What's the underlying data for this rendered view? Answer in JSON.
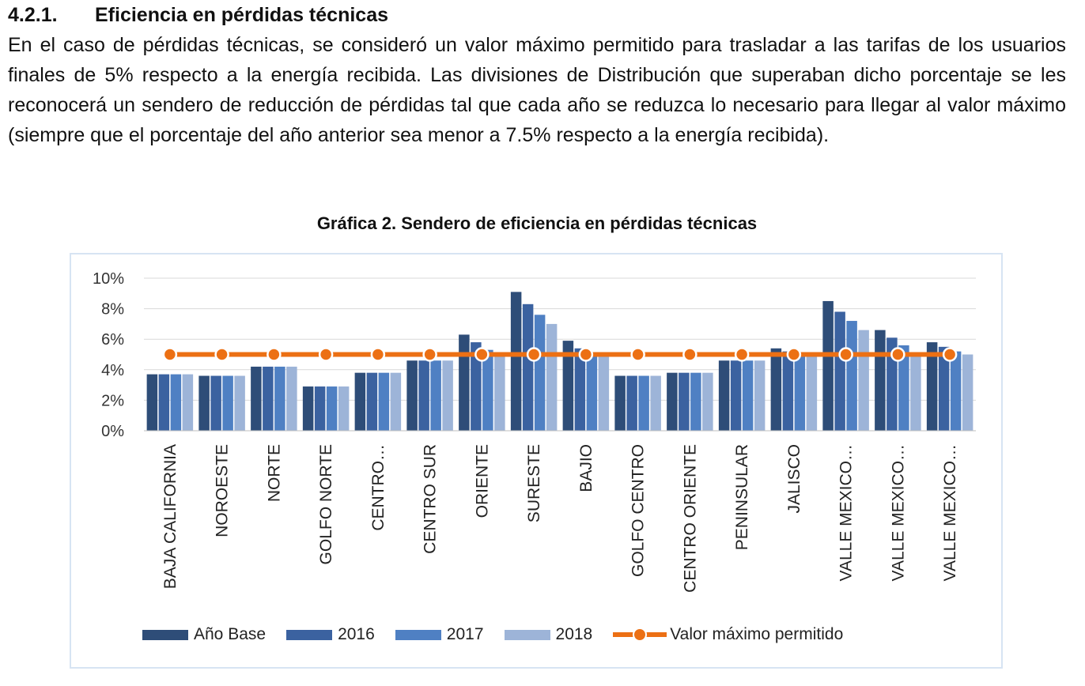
{
  "section": {
    "number": "4.2.1.",
    "title": "Eficiencia en pérdidas técnicas",
    "paragraph": "En el caso de pérdidas técnicas, se consideró un valor máximo permitido para trasladar a las tarifas de los usuarios finales de 5% respecto a la energía recibida. Las divisiones de Distribución que superaban dicho porcentaje se les reconocerá un sendero de reducción de pérdidas tal que cada año se reduzca lo necesario para llegar al valor máximo (siempre que el porcentaje del año anterior sea menor a 7.5% respecto a la energía recibida)."
  },
  "chart_data": {
    "type": "bar",
    "title": "Gráfica 2. Sendero de eficiencia en pérdidas técnicas",
    "categories": [
      "BAJA CALIFORNIA",
      "NOROESTE",
      "NORTE",
      "GOLFO NORTE",
      "CENTRO…",
      "CENTRO SUR",
      "ORIENTE",
      "SURESTE",
      "BAJIO",
      "GOLFO CENTRO",
      "CENTRO ORIENTE",
      "PENINSULAR",
      "JALISCO",
      "VALLE MEXICO…",
      "VALLE MEXICO…",
      "VALLE MEXICO…"
    ],
    "series": [
      {
        "name": "Año Base",
        "kind": "bar",
        "color": "#2e4d78",
        "values": [
          3.7,
          3.6,
          4.2,
          2.9,
          3.8,
          4.6,
          6.3,
          9.1,
          5.9,
          3.6,
          3.8,
          4.6,
          5.4,
          8.5,
          6.6,
          5.8
        ]
      },
      {
        "name": "2016",
        "kind": "bar",
        "color": "#3b62a0",
        "values": [
          3.7,
          3.6,
          4.2,
          2.9,
          3.8,
          4.6,
          5.8,
          8.3,
          5.4,
          3.6,
          3.8,
          4.6,
          5.2,
          7.8,
          6.1,
          5.5
        ]
      },
      {
        "name": "2017",
        "kind": "bar",
        "color": "#4f80c3",
        "values": [
          3.7,
          3.6,
          4.2,
          2.9,
          3.8,
          4.6,
          5.3,
          7.6,
          5.0,
          3.6,
          3.8,
          4.6,
          5.0,
          7.2,
          5.6,
          5.2
        ]
      },
      {
        "name": "2018",
        "kind": "bar",
        "color": "#9db4d8",
        "values": [
          3.7,
          3.6,
          4.2,
          2.9,
          3.8,
          4.6,
          5.0,
          7.0,
          5.0,
          3.6,
          3.8,
          4.6,
          5.0,
          6.6,
          5.0,
          5.0
        ]
      },
      {
        "name": "Valor máximo permitido",
        "kind": "line",
        "color": "#ec7014",
        "values": [
          5,
          5,
          5,
          5,
          5,
          5,
          5,
          5,
          5,
          5,
          5,
          5,
          5,
          5,
          5,
          5
        ]
      }
    ],
    "y_ticks": [
      "0%",
      "2%",
      "4%",
      "6%",
      "8%",
      "10%"
    ],
    "ylim": [
      0,
      10
    ],
    "grid": true,
    "legend_placement": "bottom"
  }
}
